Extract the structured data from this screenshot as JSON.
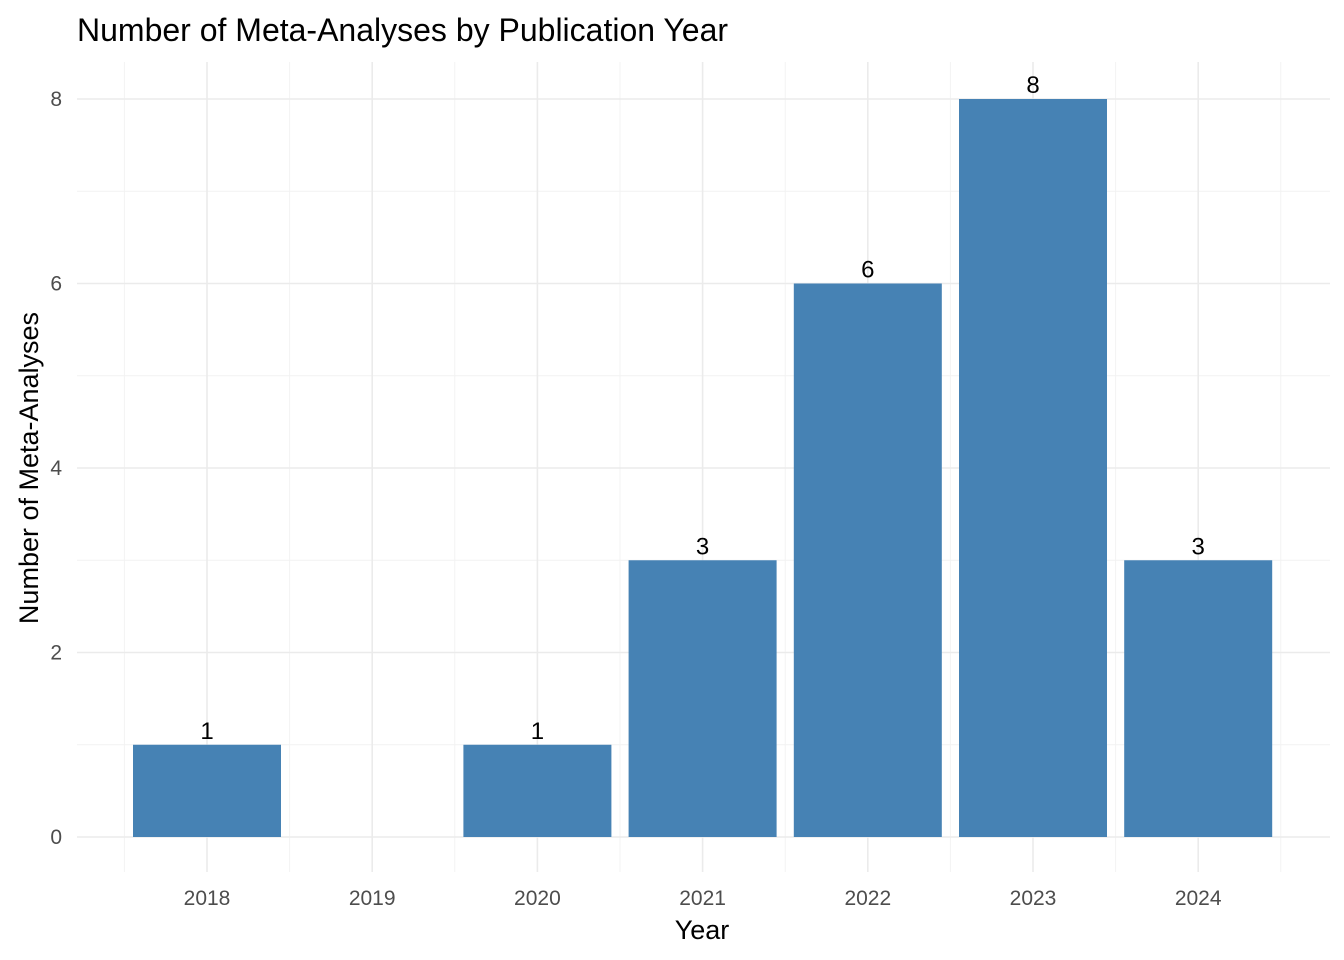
{
  "chart_data": {
    "type": "bar",
    "title": "Number of Meta-Analyses by Publication Year",
    "xlabel": "Year",
    "ylabel": "Number of Meta-Analyses",
    "categories": [
      "2018",
      "2019",
      "2020",
      "2021",
      "2022",
      "2023",
      "2024"
    ],
    "values": [
      1,
      0,
      1,
      3,
      6,
      8,
      3
    ],
    "data_labels": [
      "1",
      "",
      "1",
      "3",
      "6",
      "8",
      "3"
    ],
    "yticks": [
      0,
      2,
      4,
      6,
      8
    ],
    "ylim": [
      0,
      8
    ],
    "bar_color": "#4682B4",
    "grid": true,
    "legend": "none"
  }
}
